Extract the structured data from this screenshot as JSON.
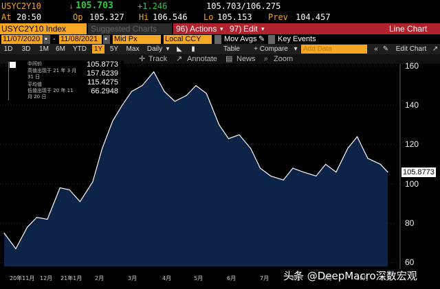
{
  "quote": {
    "ticker": "USYC2Y10",
    "last": "105.703",
    "change": "+1.246",
    "bid_ask": "105.703/106.275",
    "at_label": "At",
    "time": "20:50",
    "open_label": "Op",
    "open": "105.327",
    "high_label": "Hi",
    "high": "106.546",
    "low_label": "Lo",
    "low": "105.153",
    "prev_label": "Prev",
    "prev": "104.457"
  },
  "tabs": {
    "index_tab": "USYC2Y10 Index",
    "suggested_charts": "Suggested Charts",
    "actions_prefix": "96)",
    "actions": "Actions",
    "edit_prefix": "97)",
    "edit": "Edit",
    "view_title": "Line Chart"
  },
  "controls": {
    "start_date": "11/07/2020",
    "end_date": "11/08/2021",
    "price_field": "Mid Px",
    "currency": "Local CCY",
    "mov_avgs": "Mov Avgs",
    "key_events": "Key Events",
    "table": "Table",
    "compare": "+ Compare",
    "add_data_placeholder": "Add Data",
    "edit_chart": "Edit Chart"
  },
  "ranges": [
    "1D",
    "3D",
    "1M",
    "6M",
    "YTD",
    "1Y",
    "5Y",
    "Max"
  ],
  "active_range": "1Y",
  "frequency": "Daily",
  "tools": {
    "track": "Track",
    "annotate": "Annotate",
    "news": "News",
    "zoom": "Zoom"
  },
  "legend": {
    "rows": [
      {
        "label": "中间价",
        "value": "105.8773"
      },
      {
        "label": "高值出现于 21 年 3 月 31 日",
        "value": "157.6239"
      },
      {
        "label": "平均值",
        "value": "115.4275"
      },
      {
        "label": "低值出现于 20 年 11 月 20 日",
        "value": "66.2948"
      }
    ]
  },
  "last_value_label": "105.8773",
  "watermark": "头条 @DeepMacro深数宏观",
  "colors": {
    "fill": "#0d2348",
    "line": "#ffffff",
    "accent": "#f5a623",
    "bar_red": "#b0222e",
    "up": "#2ecc40"
  },
  "chart_data": {
    "type": "area",
    "title": "",
    "xlabel": "",
    "ylabel": "",
    "ylim": [
      58,
      168
    ],
    "yticks": [
      60,
      80,
      100,
      120,
      140,
      160
    ],
    "xticks": [
      "20年11月",
      "12月",
      "21年1月",
      "2月",
      "3月",
      "4月",
      "5月",
      "6月",
      "7月",
      "8月",
      "9月",
      "10月",
      "11月"
    ],
    "x": [
      "2020-11-09",
      "2020-11-20",
      "2020-12-01",
      "2020-12-10",
      "2020-12-20",
      "2021-01-01",
      "2021-01-10",
      "2021-01-20",
      "2021-02-01",
      "2021-02-10",
      "2021-02-20",
      "2021-03-01",
      "2021-03-10",
      "2021-03-20",
      "2021-03-31",
      "2021-04-10",
      "2021-04-20",
      "2021-05-01",
      "2021-05-10",
      "2021-05-20",
      "2021-06-01",
      "2021-06-10",
      "2021-06-20",
      "2021-07-01",
      "2021-07-10",
      "2021-07-20",
      "2021-08-01",
      "2021-08-10",
      "2021-08-20",
      "2021-09-01",
      "2021-09-10",
      "2021-09-20",
      "2021-10-01",
      "2021-10-10",
      "2021-10-20",
      "2021-11-01",
      "2021-11-08"
    ],
    "values": [
      75,
      67,
      78,
      83,
      82,
      98,
      97,
      91,
      101,
      118,
      132,
      140,
      147,
      150,
      157,
      147,
      142,
      145,
      150,
      146,
      130,
      123,
      125,
      118,
      108,
      104,
      102,
      108,
      106,
      104,
      110,
      106,
      118,
      124,
      113,
      110,
      106
    ]
  }
}
